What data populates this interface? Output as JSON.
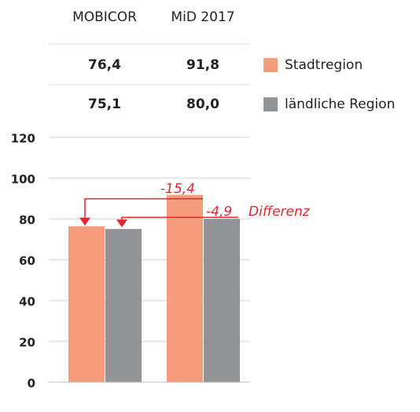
{
  "chart_data": {
    "type": "bar",
    "categories": [
      "MOBICOR",
      "MiD 2017"
    ],
    "series": [
      {
        "name": "Stadtregion",
        "color": "#f59c7c",
        "values": [
          76.4,
          91.8
        ],
        "value_labels": [
          "76,4",
          "91,8"
        ]
      },
      {
        "name": "ländliche Region",
        "color": "#929396",
        "values": [
          75.1,
          80.0
        ],
        "value_labels": [
          "75,1",
          "80,0"
        ]
      }
    ],
    "ylim": [
      0,
      120
    ],
    "yticks": [
      0,
      20,
      40,
      60,
      80,
      100,
      120
    ],
    "grid": true,
    "annotations": [
      "-15,4",
      "-4,9",
      "Differenz"
    ],
    "annotation_color": "#e3262e"
  }
}
